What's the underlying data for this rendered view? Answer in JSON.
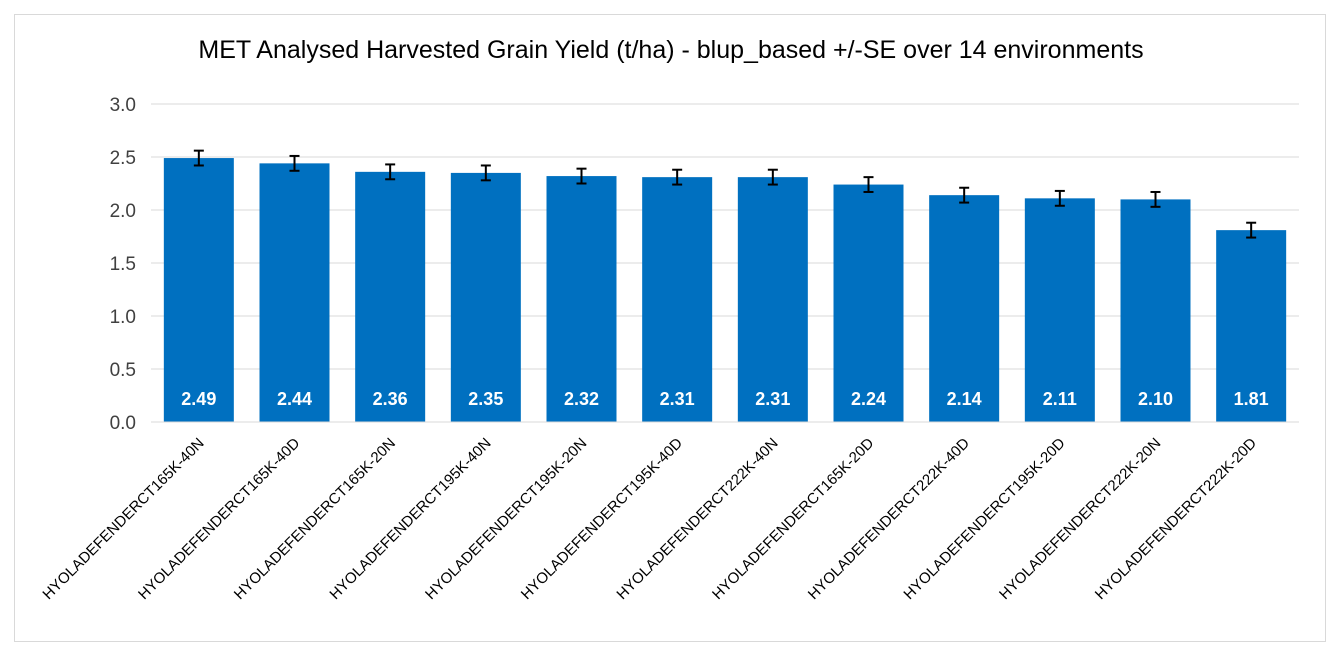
{
  "chart_data": {
    "type": "bar",
    "title": "MET Analysed Harvested Grain Yield (t/ha) - blup_based +/-SE over 14 environments",
    "categories": [
      "HYOLADEFENDERCT165K-40N",
      "HYOLADEFENDERCT165K-40D",
      "HYOLADEFENDERCT165K-20N",
      "HYOLADEFENDERCT195K-40N",
      "HYOLADEFENDERCT195K-20N",
      "HYOLADEFENDERCT195K-40D",
      "HYOLADEFENDERCT222K-40N",
      "HYOLADEFENDERCT165K-20D",
      "HYOLADEFENDERCT222K-40D",
      "HYOLADEFENDERCT195K-20D",
      "HYOLADEFENDERCT222K-20N",
      "HYOLADEFENDERCT222K-20D"
    ],
    "values": [
      2.49,
      2.44,
      2.36,
      2.35,
      2.32,
      2.31,
      2.31,
      2.24,
      2.14,
      2.11,
      2.1,
      1.81
    ],
    "value_labels": [
      "2.49",
      "2.44",
      "2.36",
      "2.35",
      "2.32",
      "2.31",
      "2.31",
      "2.24",
      "2.14",
      "2.11",
      "2.10",
      "1.81"
    ],
    "error": [
      0.07,
      0.07,
      0.07,
      0.07,
      0.07,
      0.07,
      0.07,
      0.07,
      0.07,
      0.07,
      0.07,
      0.07
    ],
    "ylim": [
      0,
      3.0
    ],
    "yticks": [
      0.0,
      0.5,
      1.0,
      1.5,
      2.0,
      2.5,
      3.0
    ],
    "ytick_labels": [
      "0.0",
      "0.5",
      "1.0",
      "1.5",
      "2.0",
      "2.5",
      "3.0"
    ],
    "xlabel": "",
    "ylabel": "",
    "grid": true,
    "legend": "none",
    "bar_color": "#0070C0",
    "grid_color": "#d9d9d9",
    "value_label_color": "#ffffff"
  }
}
